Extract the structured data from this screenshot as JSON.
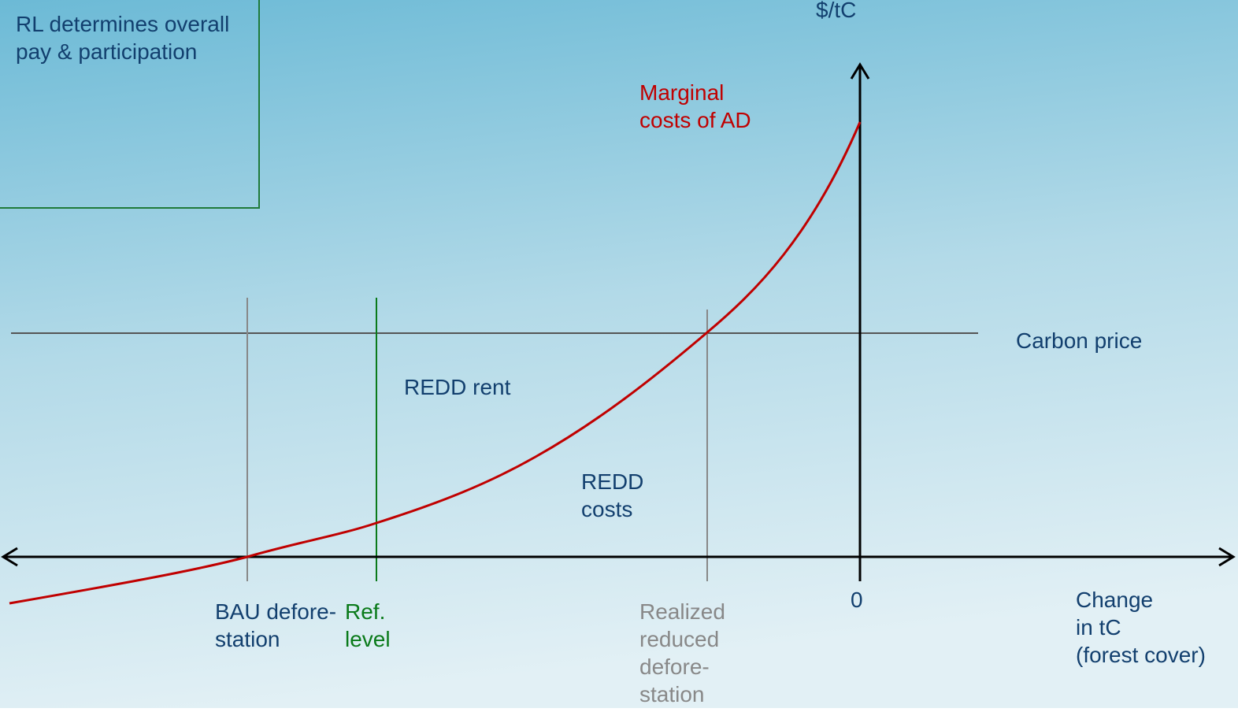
{
  "box": {
    "lines": [
      "RL determines overall",
      "pay & participation"
    ]
  },
  "axes": {
    "y_label": "$/tC",
    "origin": "0",
    "x_label": [
      "Change",
      "in tC",
      "(forest cover)"
    ]
  },
  "curve_label": [
    "Marginal",
    "costs of AD"
  ],
  "carbon_price": "Carbon price",
  "redd_rent": "REDD rent",
  "redd_costs": [
    "REDD",
    "costs"
  ],
  "bau": [
    "BAU defore-",
    "station"
  ],
  "ref_level": [
    "Ref.",
    "level"
  ],
  "realized": [
    "Realized",
    "reduced",
    "defore-",
    "station"
  ]
}
